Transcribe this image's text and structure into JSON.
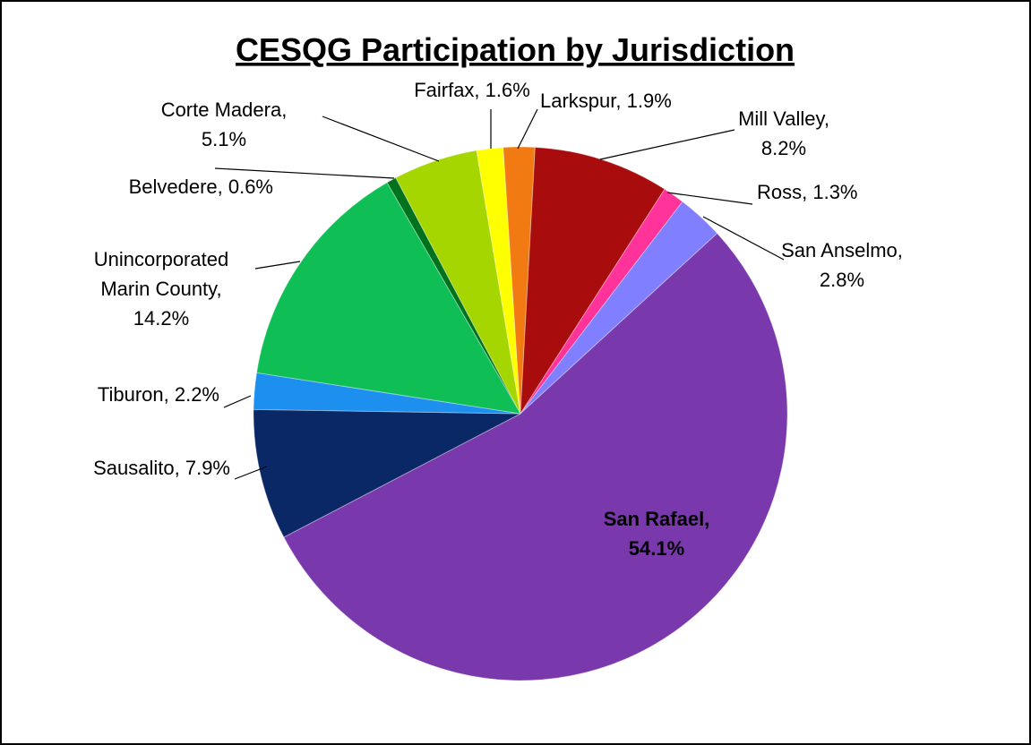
{
  "chart_data": {
    "type": "pie",
    "title": "CESQG Participation by Jurisdiction",
    "values": [
      0.6,
      5.1,
      1.6,
      1.9,
      8.2,
      1.3,
      2.8,
      54.1,
      7.9,
      2.2,
      14.2
    ],
    "value_labels": [
      "Belvedere, 0.6%",
      "Corte Madera,\n5.1%",
      "Fairfax, 1.6%",
      "Larkspur, 1.9%",
      "Mill Valley,\n8.2%",
      "Ross, 1.3%",
      "San Anselmo,\n2.8%",
      "San Rafael,\n54.1%",
      "Sausalito, 7.9%",
      "Tiburon, 2.2%",
      "Unincorporated\nMarin County,\n14.2%"
    ],
    "colors": [
      "#00721e",
      "#a6d600",
      "#ffff00",
      "#f27a12",
      "#a80c0c",
      "#ff3399",
      "#7f7fff",
      "#7a38ad",
      "#0b2866",
      "#1c8fef",
      "#0fbf55"
    ]
  }
}
